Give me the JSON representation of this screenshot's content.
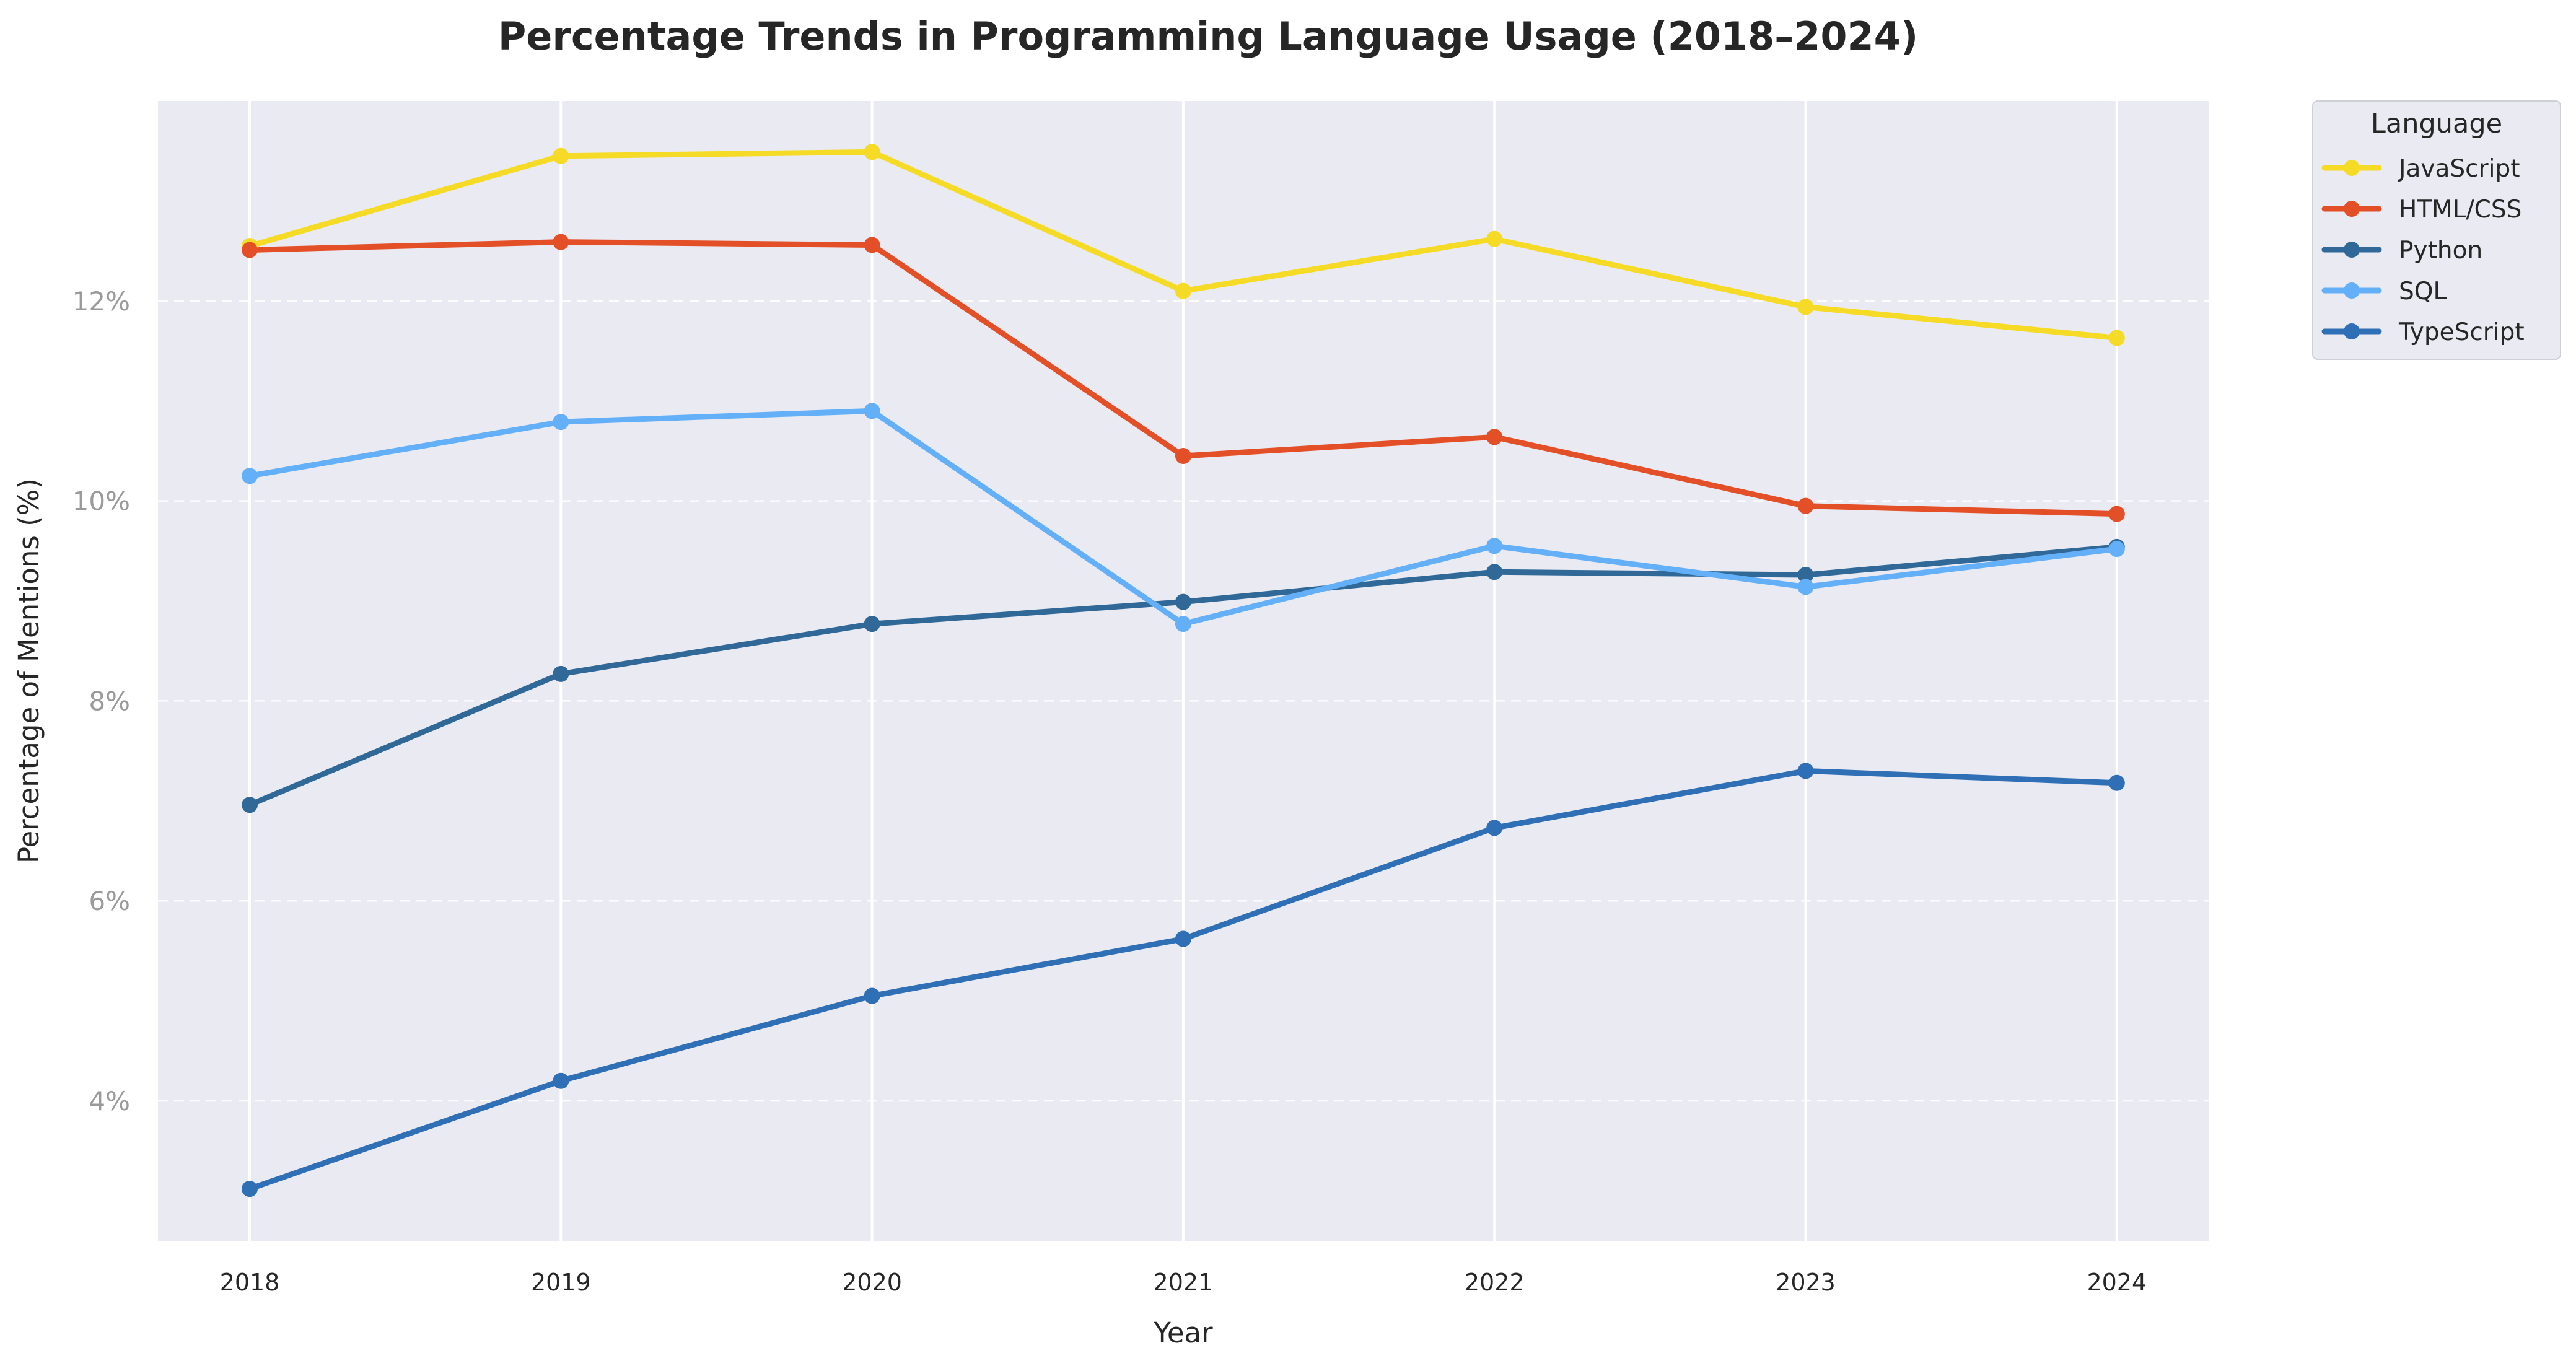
{
  "chart_data": {
    "type": "line",
    "title": "Percentage Trends in Programming Language Usage (2018–2024)",
    "xlabel": "Year",
    "ylabel": "Percentage of Mentions (%)",
    "x": [
      "2018",
      "2019",
      "2020",
      "2021",
      "2022",
      "2023",
      "2024"
    ],
    "ylim": [
      2.6,
      14.0
    ],
    "yticks": [
      4,
      6,
      8,
      10,
      12
    ],
    "ytick_labels": [
      "4%",
      "6%",
      "8%",
      "10%",
      "12%"
    ],
    "grid": true,
    "legend": {
      "title": "Language",
      "placement": "outside-top-right"
    },
    "series": [
      {
        "name": "JavaScript",
        "color": "#f5db25",
        "values": [
          12.55,
          13.45,
          13.49,
          12.1,
          12.62,
          11.94,
          11.63
        ]
      },
      {
        "name": "HTML/CSS",
        "color": "#e34f26",
        "values": [
          12.51,
          12.59,
          12.56,
          10.45,
          10.64,
          9.95,
          9.87
        ]
      },
      {
        "name": "Python",
        "color": "#306998",
        "values": [
          6.96,
          8.27,
          8.77,
          8.99,
          9.29,
          9.26,
          9.54
        ]
      },
      {
        "name": "SQL",
        "color": "#64b0f8",
        "values": [
          10.25,
          10.79,
          10.9,
          8.77,
          9.55,
          9.14,
          9.52
        ]
      },
      {
        "name": "TypeScript",
        "color": "#2f6fb5",
        "values": [
          3.12,
          4.2,
          5.05,
          5.62,
          6.73,
          7.3,
          7.18
        ]
      }
    ]
  }
}
